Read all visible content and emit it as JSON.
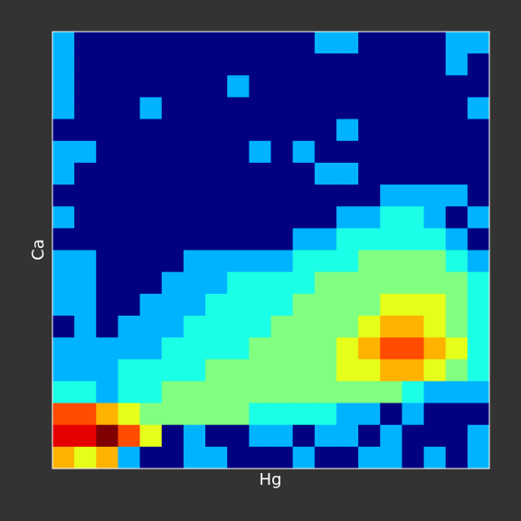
{
  "chart_data": {
    "type": "heatmap",
    "x_label": "Hg",
    "y_label": "Ca",
    "colormap": "jet",
    "zlim": [
      0,
      10
    ],
    "values": [
      [
        3,
        0,
        0,
        0,
        0,
        0,
        0,
        0,
        0,
        0,
        0,
        0,
        3,
        3,
        0,
        0,
        0,
        0,
        3,
        3
      ],
      [
        3,
        0,
        0,
        0,
        0,
        0,
        0,
        0,
        0,
        0,
        0,
        0,
        0,
        0,
        0,
        0,
        0,
        0,
        3,
        0
      ],
      [
        3,
        0,
        0,
        0,
        0,
        0,
        0,
        0,
        3,
        0,
        0,
        0,
        0,
        0,
        0,
        0,
        0,
        0,
        0,
        0
      ],
      [
        3,
        0,
        0,
        0,
        3,
        0,
        0,
        0,
        0,
        0,
        0,
        0,
        0,
        0,
        0,
        0,
        0,
        0,
        0,
        3
      ],
      [
        0,
        0,
        0,
        0,
        0,
        0,
        0,
        0,
        0,
        0,
        0,
        0,
        0,
        3,
        0,
        0,
        0,
        0,
        0,
        0
      ],
      [
        3,
        3,
        0,
        0,
        0,
        0,
        0,
        0,
        0,
        3,
        0,
        3,
        0,
        0,
        0,
        0,
        0,
        0,
        0,
        0
      ],
      [
        3,
        0,
        0,
        0,
        0,
        0,
        0,
        0,
        0,
        0,
        0,
        0,
        3,
        3,
        0,
        0,
        0,
        0,
        0,
        0
      ],
      [
        0,
        0,
        0,
        0,
        0,
        0,
        0,
        0,
        0,
        0,
        0,
        0,
        0,
        0,
        0,
        3,
        3,
        3,
        3,
        0
      ],
      [
        3,
        0,
        0,
        0,
        0,
        0,
        0,
        0,
        0,
        0,
        0,
        0,
        0,
        3,
        3,
        4,
        4,
        3,
        0,
        3
      ],
      [
        0,
        0,
        0,
        0,
        0,
        0,
        0,
        0,
        0,
        0,
        0,
        3,
        3,
        4,
        4,
        4,
        4,
        4,
        3,
        0
      ],
      [
        3,
        3,
        0,
        0,
        0,
        0,
        3,
        3,
        3,
        3,
        3,
        4,
        4,
        4,
        5,
        5,
        5,
        5,
        4,
        3
      ],
      [
        3,
        3,
        0,
        0,
        0,
        3,
        3,
        3,
        4,
        4,
        4,
        4,
        5,
        5,
        5,
        5,
        5,
        5,
        5,
        4
      ],
      [
        3,
        3,
        0,
        0,
        3,
        3,
        3,
        4,
        4,
        4,
        4,
        5,
        5,
        5,
        5,
        6,
        6,
        6,
        5,
        4
      ],
      [
        0,
        3,
        0,
        3,
        3,
        3,
        4,
        4,
        4,
        4,
        5,
        5,
        5,
        5,
        6,
        7,
        7,
        6,
        5,
        4
      ],
      [
        3,
        3,
        3,
        3,
        3,
        4,
        4,
        4,
        4,
        5,
        5,
        5,
        5,
        6,
        7,
        8,
        8,
        7,
        6,
        4
      ],
      [
        3,
        3,
        3,
        4,
        4,
        4,
        4,
        5,
        5,
        5,
        5,
        5,
        5,
        6,
        6,
        7,
        7,
        6,
        5,
        4
      ],
      [
        4,
        4,
        3,
        4,
        4,
        5,
        5,
        5,
        5,
        5,
        5,
        5,
        5,
        5,
        5,
        5,
        4,
        3,
        3,
        3
      ],
      [
        8,
        8,
        7,
        6,
        5,
        5,
        5,
        5,
        5,
        4,
        4,
        4,
        4,
        3,
        3,
        0,
        3,
        0,
        0,
        0
      ],
      [
        9,
        9,
        10,
        8,
        6,
        0,
        3,
        0,
        0,
        3,
        3,
        0,
        3,
        3,
        0,
        3,
        0,
        0,
        0,
        3
      ],
      [
        7,
        6,
        7,
        3,
        0,
        0,
        3,
        3,
        0,
        0,
        0,
        3,
        0,
        0,
        3,
        3,
        0,
        3,
        0,
        3
      ]
    ]
  }
}
